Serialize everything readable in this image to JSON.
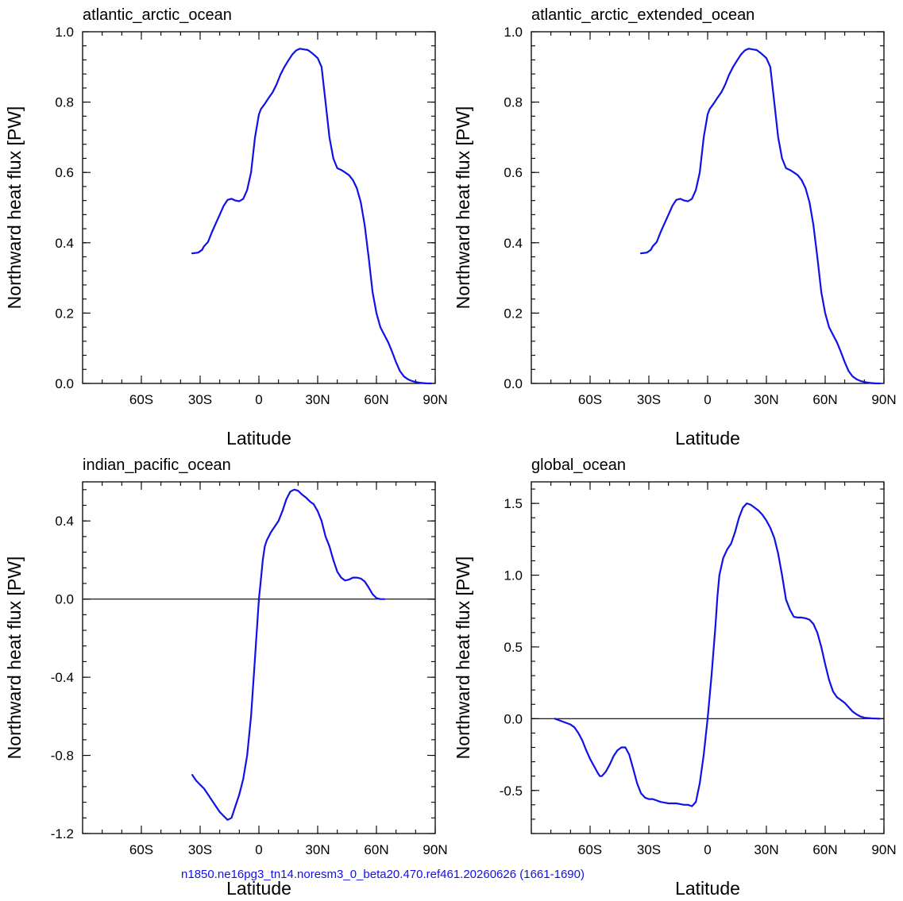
{
  "footer": "n1850.ne16pg3_tn14.noresm3_0_beta20.470.ref461.20260626 (1661-1690)",
  "colors": {
    "line": "#1010e8",
    "footer": "#1010e8",
    "axis": "#000000"
  },
  "chart_data": [
    {
      "type": "line",
      "title": "atlantic_arctic_ocean",
      "xlabel": "Latitude",
      "ylabel": "Northward heat flux [PW]",
      "xlim": [
        -90,
        90
      ],
      "ylim": [
        0,
        1.0
      ],
      "xticks": [
        -60,
        -30,
        0,
        30,
        60,
        90
      ],
      "xtick_labels": [
        "60S",
        "30S",
        "0",
        "30N",
        "60N",
        "90N"
      ],
      "yticks": [
        0,
        0.2,
        0.4,
        0.6,
        0.8,
        1.0
      ],
      "ytick_labels": [
        "0.0",
        "0.2",
        "0.4",
        "0.6",
        "0.8",
        "1.0"
      ],
      "zero_line": false,
      "series": [
        {
          "x": [
            -34,
            -31,
            -29,
            -28,
            -26,
            -24,
            -22,
            -20,
            -18,
            -16,
            -14,
            -12,
            -10,
            -8,
            -6,
            -4,
            -2,
            0,
            1,
            3,
            5,
            7,
            9,
            11,
            13,
            15,
            17,
            19,
            21,
            23,
            25,
            27,
            28,
            30,
            32,
            33,
            34,
            36,
            38,
            40,
            42,
            44,
            46,
            48,
            50,
            52,
            54,
            56,
            58,
            60,
            62,
            64,
            66,
            68,
            70,
            72,
            74,
            76,
            78,
            80,
            82,
            84,
            86,
            88
          ],
          "y": [
            0.37,
            0.372,
            0.38,
            0.39,
            0.402,
            0.43,
            0.455,
            0.48,
            0.505,
            0.522,
            0.525,
            0.52,
            0.518,
            0.525,
            0.55,
            0.6,
            0.7,
            0.765,
            0.78,
            0.795,
            0.812,
            0.828,
            0.85,
            0.878,
            0.9,
            0.918,
            0.935,
            0.947,
            0.952,
            0.95,
            0.948,
            0.94,
            0.935,
            0.925,
            0.9,
            0.85,
            0.8,
            0.7,
            0.64,
            0.612,
            0.607,
            0.6,
            0.592,
            0.578,
            0.555,
            0.515,
            0.45,
            0.36,
            0.26,
            0.2,
            0.16,
            0.138,
            0.117,
            0.09,
            0.06,
            0.035,
            0.02,
            0.012,
            0.007,
            0.004,
            0.002,
            0.001,
            0.0,
            0.0
          ]
        }
      ]
    },
    {
      "type": "line",
      "title": "atlantic_arctic_extended_ocean",
      "xlabel": "Latitude",
      "ylabel": "Northward heat flux [PW]",
      "xlim": [
        -90,
        90
      ],
      "ylim": [
        0,
        1.0
      ],
      "xticks": [
        -60,
        -30,
        0,
        30,
        60,
        90
      ],
      "xtick_labels": [
        "60S",
        "30S",
        "0",
        "30N",
        "60N",
        "90N"
      ],
      "yticks": [
        0,
        0.2,
        0.4,
        0.6,
        0.8,
        1.0
      ],
      "ytick_labels": [
        "0.0",
        "0.2",
        "0.4",
        "0.6",
        "0.8",
        "1.0"
      ],
      "zero_line": false,
      "series": [
        {
          "x": [
            -34,
            -31,
            -29,
            -28,
            -26,
            -24,
            -22,
            -20,
            -18,
            -16,
            -14,
            -12,
            -10,
            -8,
            -6,
            -4,
            -2,
            0,
            1,
            3,
            5,
            7,
            9,
            11,
            13,
            15,
            17,
            19,
            21,
            23,
            25,
            27,
            28,
            30,
            32,
            33,
            34,
            36,
            38,
            40,
            42,
            44,
            46,
            48,
            50,
            52,
            54,
            56,
            58,
            60,
            62,
            64,
            66,
            68,
            70,
            72,
            74,
            76,
            78,
            80,
            82,
            84,
            86,
            88
          ],
          "y": [
            0.37,
            0.372,
            0.38,
            0.39,
            0.402,
            0.43,
            0.455,
            0.48,
            0.505,
            0.522,
            0.525,
            0.52,
            0.518,
            0.525,
            0.55,
            0.6,
            0.7,
            0.765,
            0.78,
            0.795,
            0.812,
            0.828,
            0.85,
            0.878,
            0.9,
            0.918,
            0.935,
            0.947,
            0.952,
            0.95,
            0.948,
            0.94,
            0.935,
            0.925,
            0.9,
            0.85,
            0.8,
            0.7,
            0.64,
            0.612,
            0.607,
            0.6,
            0.592,
            0.578,
            0.555,
            0.515,
            0.45,
            0.36,
            0.26,
            0.2,
            0.16,
            0.138,
            0.117,
            0.09,
            0.06,
            0.035,
            0.02,
            0.012,
            0.007,
            0.004,
            0.002,
            0.001,
            0.0,
            0.0
          ]
        }
      ]
    },
    {
      "type": "line",
      "title": "indian_pacific_ocean",
      "xlabel": "Latitude",
      "ylabel": "Northward heat flux [PW]",
      "xlim": [
        -90,
        90
      ],
      "ylim": [
        -1.2,
        0.6
      ],
      "xticks": [
        -60,
        -30,
        0,
        30,
        60,
        90
      ],
      "xtick_labels": [
        "60S",
        "30S",
        "0",
        "30N",
        "60N",
        "90N"
      ],
      "yticks": [
        -1.2,
        -0.8,
        -0.4,
        0.0,
        0.4
      ],
      "ytick_labels": [
        "-1.2",
        "-0.8",
        "-0.4",
        "0.0",
        "0.4"
      ],
      "zero_line": true,
      "series": [
        {
          "x": [
            -34,
            -32,
            -30,
            -28,
            -26,
            -24,
            -22,
            -20,
            -18,
            -16,
            -14,
            -12,
            -10,
            -8,
            -6,
            -4,
            -2,
            0,
            1,
            2,
            3,
            4,
            6,
            8,
            10,
            12,
            14,
            16,
            18,
            20,
            22,
            24,
            26,
            28,
            30,
            32,
            34,
            36,
            38,
            40,
            42,
            44,
            46,
            48,
            50,
            52,
            54,
            56,
            58,
            60,
            62,
            64
          ],
          "y": [
            -0.9,
            -0.93,
            -0.95,
            -0.97,
            -1.0,
            -1.03,
            -1.06,
            -1.09,
            -1.11,
            -1.13,
            -1.12,
            -1.06,
            -1.0,
            -0.92,
            -0.8,
            -0.6,
            -0.3,
            0.0,
            0.1,
            0.2,
            0.27,
            0.3,
            0.34,
            0.37,
            0.4,
            0.45,
            0.51,
            0.55,
            0.56,
            0.555,
            0.535,
            0.52,
            0.5,
            0.485,
            0.45,
            0.4,
            0.32,
            0.27,
            0.2,
            0.14,
            0.11,
            0.095,
            0.1,
            0.11,
            0.11,
            0.105,
            0.09,
            0.06,
            0.025,
            0.005,
            0.0,
            0.0
          ]
        }
      ]
    },
    {
      "type": "line",
      "title": "global_ocean",
      "xlabel": "Latitude",
      "ylabel": "Northward heat flux [PW]",
      "xlim": [
        -90,
        90
      ],
      "ylim": [
        -0.8,
        1.65
      ],
      "xticks": [
        -60,
        -30,
        0,
        30,
        60,
        90
      ],
      "xtick_labels": [
        "60S",
        "30S",
        "0",
        "30N",
        "60N",
        "90N"
      ],
      "yticks": [
        -0.5,
        0.0,
        0.5,
        1.0,
        1.5
      ],
      "ytick_labels": [
        "-0.5",
        "0.0",
        "0.5",
        "1.0",
        "1.5"
      ],
      "zero_line": true,
      "series": [
        {
          "x": [
            -78,
            -74,
            -70,
            -68,
            -66,
            -64,
            -62,
            -60,
            -58,
            -56,
            -55,
            -54,
            -52,
            -50,
            -48,
            -46,
            -44,
            -42,
            -40,
            -38,
            -36,
            -34,
            -32,
            -30,
            -28,
            -26,
            -24,
            -22,
            -20,
            -18,
            -16,
            -14,
            -12,
            -10,
            -8,
            -6,
            -4,
            -2,
            0,
            2,
            4,
            5,
            6,
            8,
            10,
            12,
            14,
            16,
            18,
            20,
            22,
            24,
            26,
            28,
            30,
            32,
            34,
            36,
            38,
            40,
            42,
            44,
            46,
            48,
            50,
            52,
            54,
            56,
            58,
            60,
            62,
            64,
            66,
            68,
            70,
            72,
            74,
            76,
            78,
            80,
            84,
            88
          ],
          "y": [
            0.0,
            -0.02,
            -0.04,
            -0.06,
            -0.1,
            -0.15,
            -0.22,
            -0.28,
            -0.33,
            -0.38,
            -0.4,
            -0.4,
            -0.37,
            -0.32,
            -0.26,
            -0.22,
            -0.2,
            -0.2,
            -0.25,
            -0.35,
            -0.45,
            -0.52,
            -0.55,
            -0.56,
            -0.56,
            -0.57,
            -0.58,
            -0.585,
            -0.59,
            -0.59,
            -0.59,
            -0.595,
            -0.6,
            -0.6,
            -0.61,
            -0.58,
            -0.45,
            -0.25,
            0.0,
            0.3,
            0.65,
            0.85,
            1.0,
            1.12,
            1.18,
            1.22,
            1.3,
            1.4,
            1.47,
            1.5,
            1.49,
            1.47,
            1.45,
            1.42,
            1.38,
            1.33,
            1.26,
            1.15,
            1.0,
            0.83,
            0.76,
            0.71,
            0.705,
            0.705,
            0.7,
            0.69,
            0.66,
            0.6,
            0.5,
            0.38,
            0.27,
            0.19,
            0.15,
            0.13,
            0.11,
            0.08,
            0.05,
            0.03,
            0.015,
            0.007,
            0.002,
            0.0
          ]
        }
      ]
    }
  ]
}
